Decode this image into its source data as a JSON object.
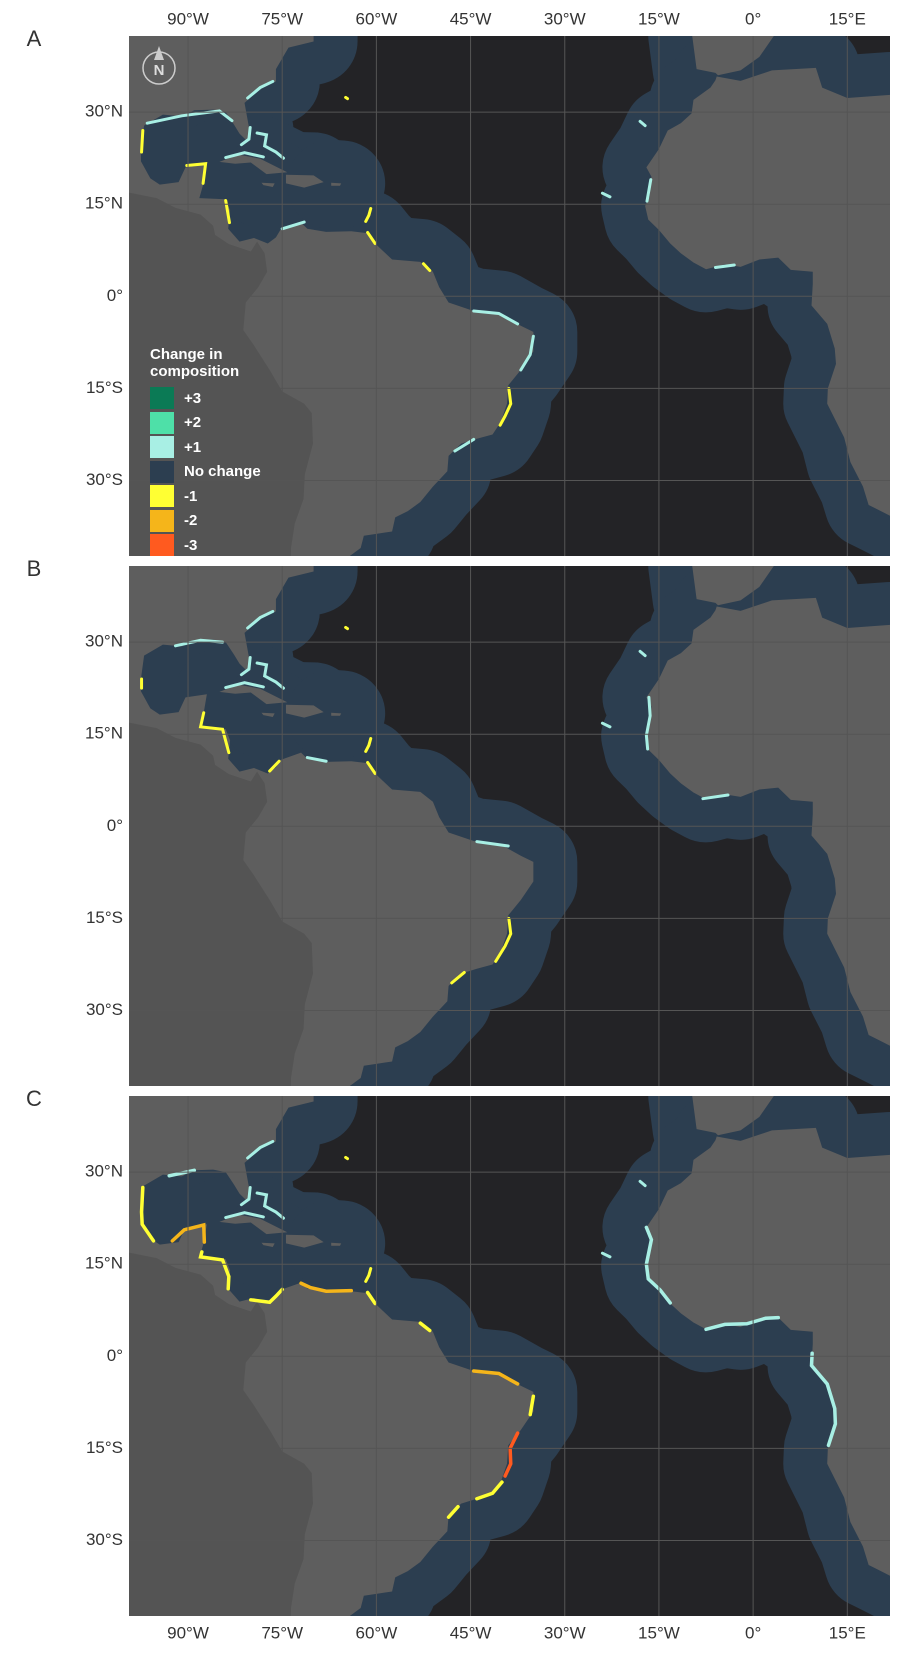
{
  "map": {
    "xlim": [
      -99.4,
      21.8
    ],
    "ylim": [
      -42.3,
      42.4
    ],
    "xticks": [
      {
        "value": -90,
        "label": "90°W"
      },
      {
        "value": -75,
        "label": "75°W"
      },
      {
        "value": -60,
        "label": "60°W"
      },
      {
        "value": -45,
        "label": "45°W"
      },
      {
        "value": -30,
        "label": "30°W"
      },
      {
        "value": -15,
        "label": "15°W"
      },
      {
        "value": 0,
        "label": "0°"
      },
      {
        "value": 15,
        "label": "15°E"
      }
    ],
    "yticks": [
      {
        "value": 30,
        "label": "30°N"
      },
      {
        "value": 15,
        "label": "15°N"
      },
      {
        "value": 0,
        "label": "0°"
      },
      {
        "value": -15,
        "label": "15°S"
      },
      {
        "value": -30,
        "label": "30°S"
      }
    ],
    "grid": true,
    "panels": [
      {
        "label": "A"
      },
      {
        "label": "B"
      },
      {
        "label": "C"
      }
    ],
    "compass": "N",
    "legend": {
      "title": "Change in composition",
      "items": [
        {
          "label": "+3",
          "color": "#0b7a55"
        },
        {
          "label": "+2",
          "color": "#4ee0a8"
        },
        {
          "label": "+1",
          "color": "#a8efe4"
        },
        {
          "label": "No change",
          "color": "#2c3e50"
        },
        {
          "label": "-1",
          "color": "#ffff33"
        },
        {
          "label": "-2",
          "color": "#f5b51a"
        },
        {
          "label": "-3",
          "color": "#ff5a1f"
        }
      ]
    }
  }
}
